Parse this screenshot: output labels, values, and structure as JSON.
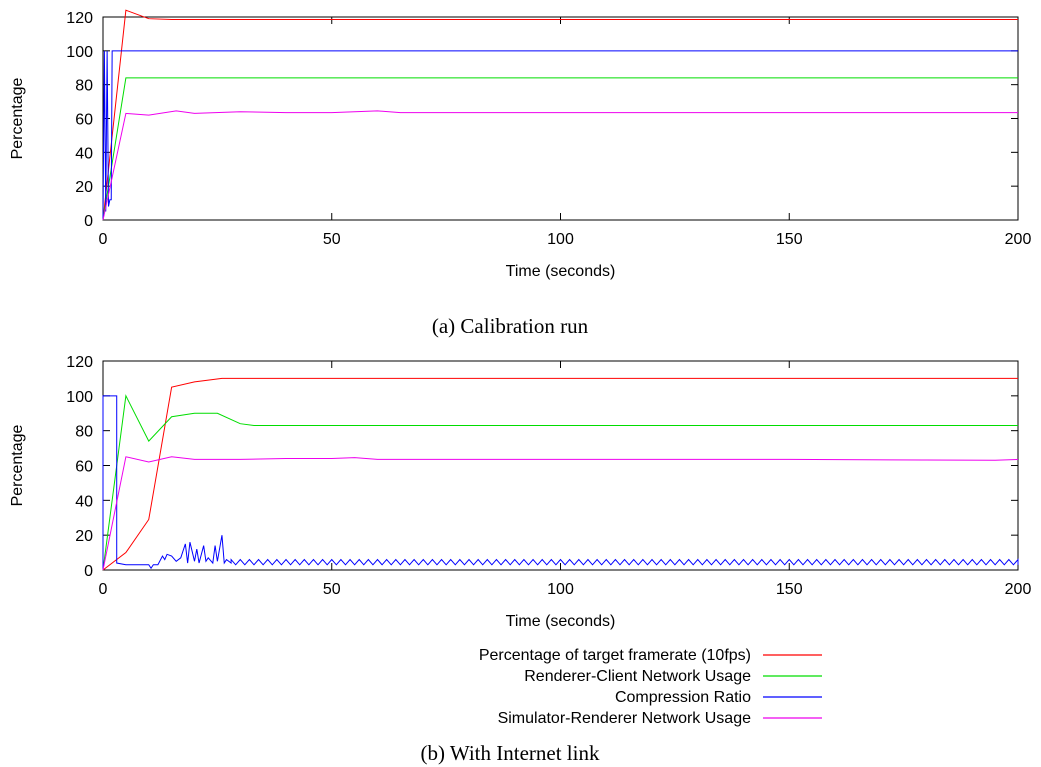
{
  "colors": {
    "framerate": "#ff0000",
    "renderer_client": "#00dd00",
    "compression": "#0000ff",
    "simulator_renderer": "#ee00ee"
  },
  "legend": [
    "Percentage of target framerate (10fps)",
    "Renderer-Client Network Usage",
    "Compression Ratio",
    "Simulator-Renderer Network Usage"
  ],
  "chart_data": [
    {
      "type": "line",
      "caption": "(a) Calibration run",
      "xlabel": "Time (seconds)",
      "ylabel": "Percentage",
      "xlim": [
        0,
        200
      ],
      "ylim": [
        0,
        120
      ],
      "xticks": [
        0,
        50,
        100,
        150,
        200
      ],
      "yticks": [
        0,
        20,
        40,
        60,
        80,
        100,
        120
      ],
      "grid": false,
      "series": [
        {
          "name": "Percentage of target framerate (10fps)",
          "color_key": "framerate",
          "x": [
            0,
            5,
            10,
            15,
            200
          ],
          "y": [
            0,
            124,
            119,
            118.5,
            118.5
          ]
        },
        {
          "name": "Renderer-Client Network Usage",
          "color_key": "renderer_client",
          "x": [
            0,
            5,
            200
          ],
          "y": [
            0,
            84,
            84
          ]
        },
        {
          "name": "Compression Ratio",
          "color_key": "compression",
          "x": [
            0,
            0.3,
            0.6,
            0.9,
            1.2,
            1.5,
            1.8,
            2,
            2,
            200
          ],
          "y": [
            0,
            100,
            5,
            100,
            8,
            12,
            12,
            100,
            100,
            100
          ]
        },
        {
          "name": "Simulator-Renderer Network Usage",
          "color_key": "simulator_renderer",
          "x": [
            0,
            5,
            10,
            16,
            20,
            30,
            40,
            50,
            60,
            65,
            80,
            100,
            150,
            200
          ],
          "y": [
            0,
            63,
            62,
            64.5,
            63,
            64,
            63.5,
            63.5,
            64.5,
            63.5,
            63.5,
            63.5,
            63.5,
            63.5
          ]
        }
      ]
    },
    {
      "type": "line",
      "caption": "(b) With Internet link",
      "xlabel": "Time (seconds)",
      "ylabel": "Percentage",
      "xlim": [
        0,
        200
      ],
      "ylim": [
        0,
        120
      ],
      "xticks": [
        0,
        50,
        100,
        150,
        200
      ],
      "yticks": [
        0,
        20,
        40,
        60,
        80,
        100,
        120
      ],
      "grid": false,
      "series": [
        {
          "name": "Percentage of target framerate (10fps)",
          "color_key": "framerate",
          "x": [
            0,
            5,
            10,
            15,
            20,
            26,
            200
          ],
          "y": [
            0,
            10,
            29,
            105,
            108,
            110,
            110
          ]
        },
        {
          "name": "Renderer-Client Network Usage",
          "color_key": "renderer_client",
          "x": [
            0,
            5,
            10,
            15,
            20,
            25,
            30,
            33,
            200
          ],
          "y": [
            0,
            100,
            74,
            88,
            90,
            90,
            84,
            83,
            83
          ]
        },
        {
          "name": "Compression Ratio",
          "color_key": "compression",
          "x": [
            0,
            0,
            3,
            3,
            5,
            10,
            10.5,
            11,
            12,
            13,
            13.5,
            14,
            15,
            16,
            17,
            18,
            18.5,
            19,
            20,
            20.5,
            21,
            22,
            22.5,
            23,
            24,
            24.5,
            25,
            26,
            26.5,
            27,
            28
          ],
          "y": [
            0,
            100,
            100,
            4,
            3,
            3,
            1,
            3,
            3,
            8,
            6,
            9,
            8,
            5,
            7,
            15,
            4,
            16,
            5,
            12,
            4,
            14,
            5,
            7,
            4,
            14,
            5,
            20,
            4,
            6,
            4
          ],
          "tail_pattern": {
            "from": 28,
            "to": 200,
            "period": 2,
            "low": 3,
            "high": 6
          }
        },
        {
          "name": "Simulator-Renderer Network Usage",
          "color_key": "simulator_renderer",
          "x": [
            0,
            5,
            10,
            15,
            20,
            30,
            40,
            50,
            55,
            60,
            80,
            100,
            150,
            195,
            200
          ],
          "y": [
            0,
            65,
            62,
            65,
            63.5,
            63.5,
            64,
            64,
            64.5,
            63.5,
            63.5,
            63.5,
            63.5,
            63,
            63.5
          ]
        }
      ]
    }
  ]
}
